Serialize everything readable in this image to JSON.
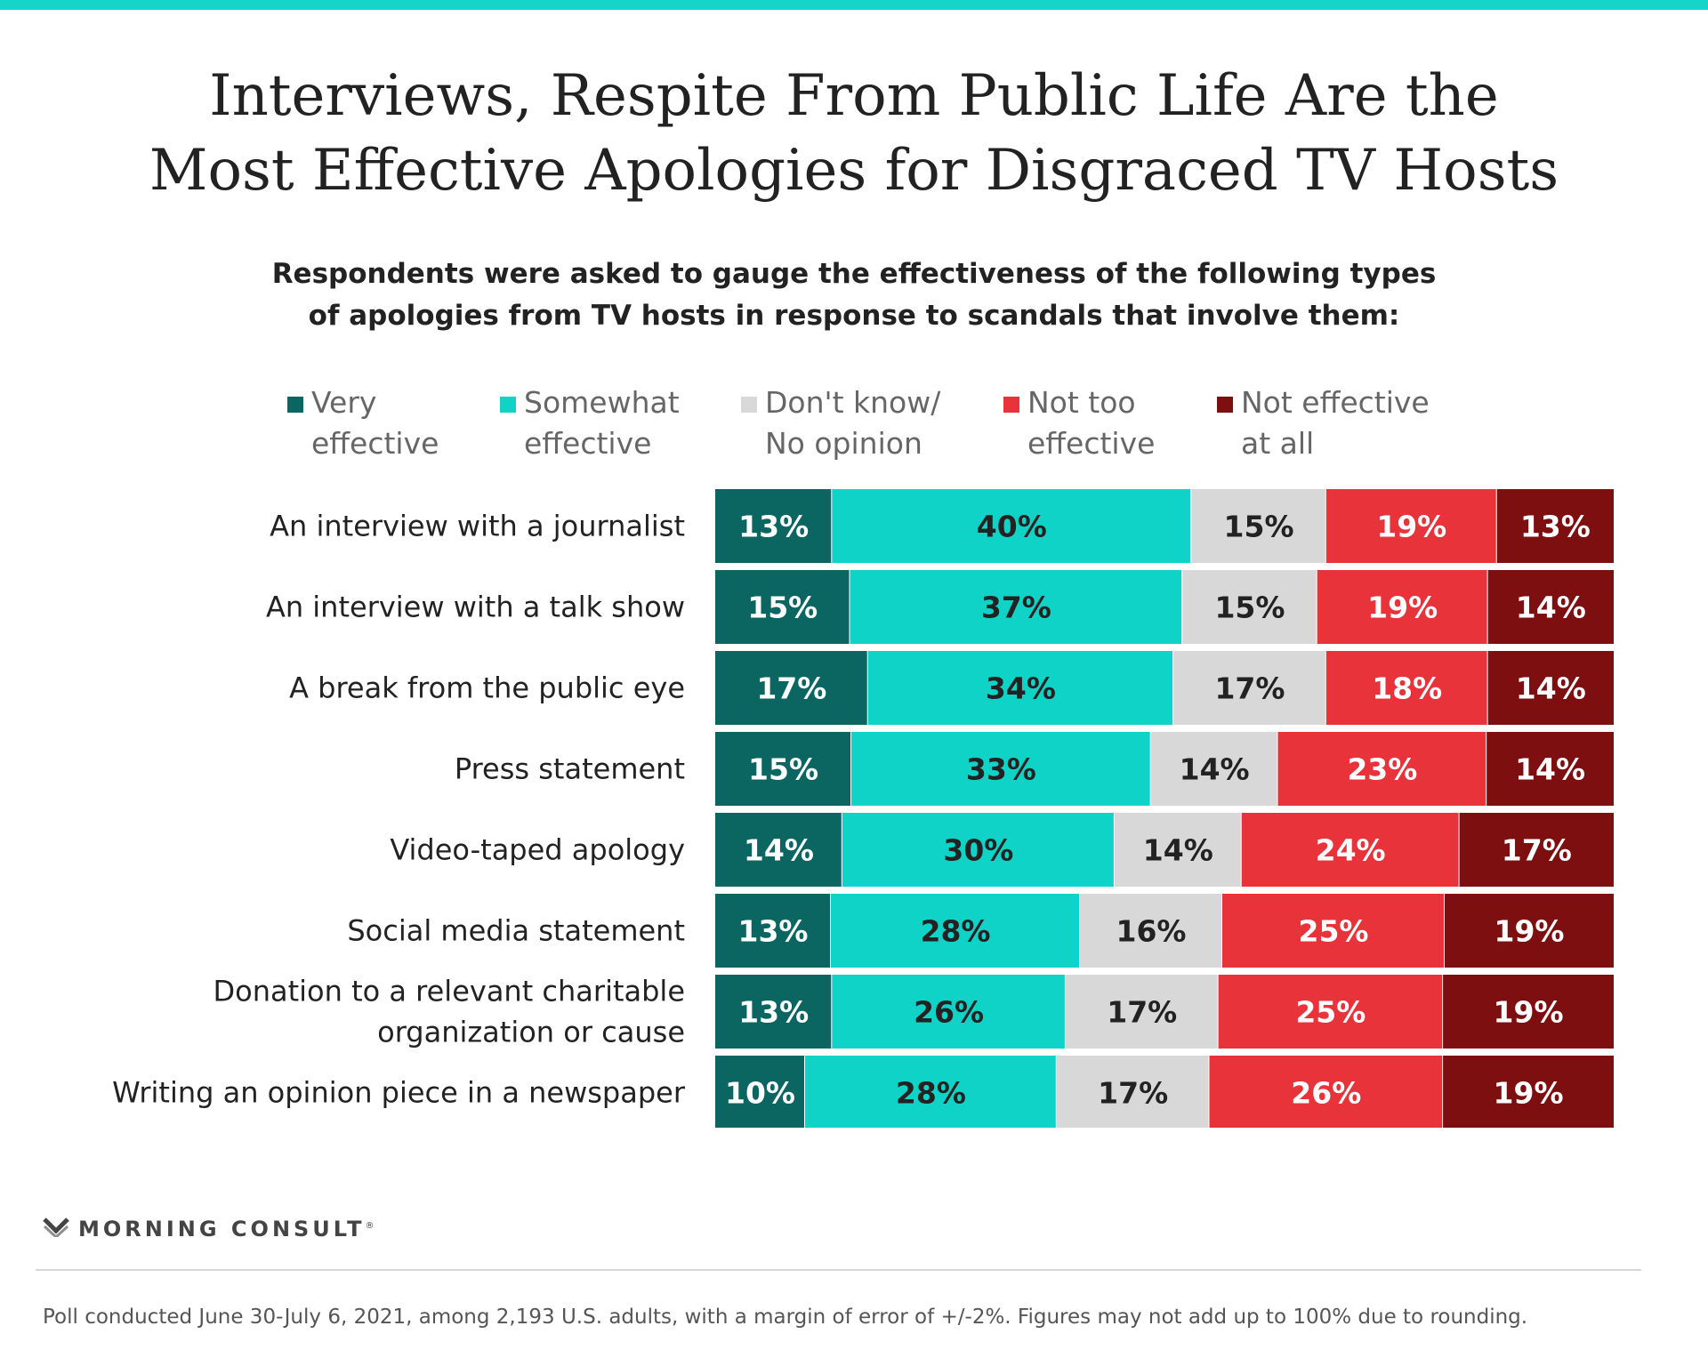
{
  "header": {
    "title_lines": [
      "Interviews, Respite From Public Life Are the",
      "Most Effective Apologies for Disgraced TV Hosts"
    ],
    "subtitle_lines": [
      "Respondents were asked to gauge the effectiveness of the following types",
      "of apologies from TV hosts in response to scandals that involve them:"
    ]
  },
  "legend": [
    {
      "lines": [
        "Very",
        "effective"
      ],
      "color": "#0b6661"
    },
    {
      "lines": [
        "Somewhat",
        "effective"
      ],
      "color": "#10d3c8"
    },
    {
      "lines": [
        "Don't know/",
        "No opinion"
      ],
      "color": "#d8d8d8"
    },
    {
      "lines": [
        "Not too",
        "effective"
      ],
      "color": "#e8333b"
    },
    {
      "lines": [
        "Not effective",
        "at all"
      ],
      "color": "#7d0f10"
    }
  ],
  "chart_data": {
    "type": "bar",
    "orientation": "horizontal",
    "stacked": true,
    "categories": [
      [
        "An interview with a journalist"
      ],
      [
        "An interview with a talk show"
      ],
      [
        "A break from the public eye"
      ],
      [
        "Press statement"
      ],
      [
        "Video-taped apology"
      ],
      [
        "Social media statement"
      ],
      [
        "Donation to a relevant charitable",
        "organization or cause"
      ],
      [
        "Writing an opinion piece in a newspaper"
      ]
    ],
    "series": [
      {
        "name": "Very effective",
        "color": "#0b6661",
        "label_color": "#ffffff",
        "values": [
          13,
          15,
          17,
          15,
          14,
          13,
          13,
          10
        ]
      },
      {
        "name": "Somewhat effective",
        "color": "#10d3c8",
        "label_color": "#222222",
        "values": [
          40,
          37,
          34,
          33,
          30,
          28,
          26,
          28
        ]
      },
      {
        "name": "Don't know/No opinion",
        "color": "#d8d8d8",
        "label_color": "#222222",
        "values": [
          15,
          15,
          17,
          14,
          14,
          16,
          17,
          17
        ]
      },
      {
        "name": "Not too effective",
        "color": "#e8333b",
        "label_color": "#ffffff",
        "values": [
          19,
          19,
          18,
          23,
          24,
          25,
          25,
          26
        ]
      },
      {
        "name": "Not effective at all",
        "color": "#7d0f10",
        "label_color": "#ffffff",
        "values": [
          13,
          14,
          14,
          14,
          17,
          19,
          19,
          19
        ]
      }
    ],
    "value_suffix": "%",
    "legend_position": "top",
    "grid": false
  },
  "footer": {
    "brand": "MORNING CONSULT",
    "brand_mark": "®",
    "note": "Poll conducted June 30-July 6, 2021, among 2,193 U.S. adults, with a margin of error of +/-2%. Figures may not add up to 100% due to rounding."
  }
}
